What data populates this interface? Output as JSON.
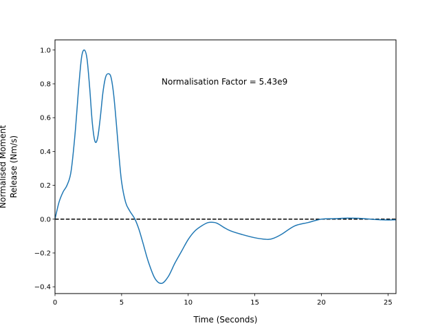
{
  "chart_data": {
    "type": "line",
    "title": "",
    "xlabel": "Time (Seconds)",
    "ylabel_lines": [
      "Normalised Moment",
      "Release (Nm/s)"
    ],
    "xlim": [
      0,
      25.6
    ],
    "ylim": [
      -0.44,
      1.06
    ],
    "x_ticks": [
      0,
      5,
      10,
      15,
      20,
      25
    ],
    "x_tick_labels": [
      "0",
      "5",
      "10",
      "15",
      "20",
      "25"
    ],
    "y_ticks": [
      -0.4,
      -0.2,
      0.0,
      0.2,
      0.4,
      0.6,
      0.8,
      1.0
    ],
    "y_tick_labels": [
      "−0.4",
      "−0.2",
      "0.0",
      "0.2",
      "0.4",
      "0.6",
      "0.8",
      "1.0"
    ],
    "grid": false,
    "annotation": "Normalisation Factor = 5.43e9",
    "reference_line": {
      "y": 0.0,
      "style": "dashed",
      "color": "#000000"
    },
    "series": [
      {
        "color": "#1f77b4",
        "x": [
          0,
          0.3,
          0.6,
          0.9,
          1.2,
          1.5,
          1.8,
          2.0,
          2.2,
          2.4,
          2.6,
          2.8,
          3.0,
          3.2,
          3.4,
          3.6,
          3.8,
          4.0,
          4.2,
          4.4,
          4.6,
          4.8,
          5.0,
          5.3,
          5.6,
          6.0,
          6.3,
          6.6,
          7.0,
          7.5,
          8.0,
          8.5,
          9.0,
          9.5,
          10.0,
          10.5,
          11.0,
          11.5,
          12.0,
          12.3,
          12.7,
          13.2,
          14.0,
          15.0,
          16.0,
          16.5,
          17.0,
          18.0,
          19.0,
          20.0,
          21.0,
          22.0,
          23.0,
          24.0,
          25.0,
          25.6
        ],
        "y": [
          0.0,
          0.1,
          0.16,
          0.2,
          0.28,
          0.5,
          0.8,
          0.96,
          1.0,
          0.95,
          0.78,
          0.57,
          0.46,
          0.48,
          0.6,
          0.75,
          0.84,
          0.86,
          0.84,
          0.74,
          0.57,
          0.38,
          0.22,
          0.1,
          0.05,
          0.0,
          -0.06,
          -0.14,
          -0.25,
          -0.35,
          -0.38,
          -0.34,
          -0.26,
          -0.19,
          -0.12,
          -0.07,
          -0.04,
          -0.02,
          -0.02,
          -0.03,
          -0.05,
          -0.07,
          -0.09,
          -0.11,
          -0.12,
          -0.11,
          -0.09,
          -0.04,
          -0.02,
          0.0,
          0.003,
          0.006,
          0.004,
          -0.002,
          -0.005,
          -0.004
        ]
      }
    ]
  }
}
